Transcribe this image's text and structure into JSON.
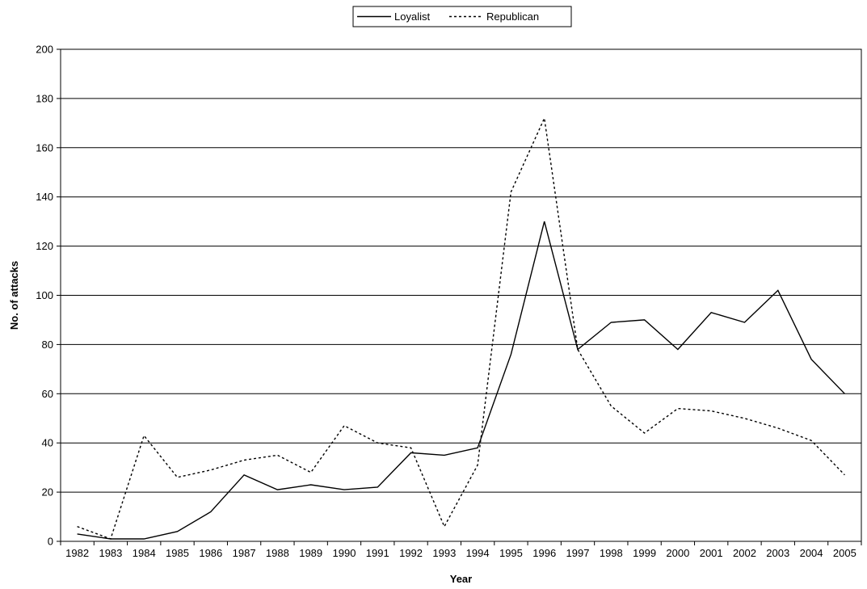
{
  "chart_data": {
    "type": "line",
    "title": "",
    "xlabel": "Year",
    "ylabel": "No. of attacks",
    "ylim": [
      0,
      200
    ],
    "yticks": [
      0,
      20,
      40,
      60,
      80,
      100,
      120,
      140,
      160,
      180,
      200
    ],
    "grid": "horizontal",
    "legend_position": "top-center",
    "categories": [
      "1982",
      "1983",
      "1984",
      "1985",
      "1986",
      "1987",
      "1988",
      "1989",
      "1990",
      "1991",
      "1992",
      "1993",
      "1994",
      "1995",
      "1996",
      "1997",
      "1998",
      "1999",
      "2000",
      "2001",
      "2002",
      "2003",
      "2004",
      "2005"
    ],
    "series": [
      {
        "name": "Loyalist",
        "style": "solid",
        "color": "#000000",
        "values": [
          3,
          1,
          1,
          4,
          12,
          27,
          21,
          23,
          21,
          22,
          36,
          35,
          38,
          76,
          130,
          78,
          89,
          90,
          78,
          93,
          89,
          102,
          74,
          60
        ]
      },
      {
        "name": "Republican",
        "style": "dashed",
        "color": "#000000",
        "values": [
          6,
          1,
          43,
          26,
          29,
          33,
          35,
          28,
          47,
          40,
          38,
          6,
          31,
          142,
          172,
          78,
          55,
          44,
          54,
          53,
          50,
          46,
          41,
          27
        ]
      }
    ]
  }
}
